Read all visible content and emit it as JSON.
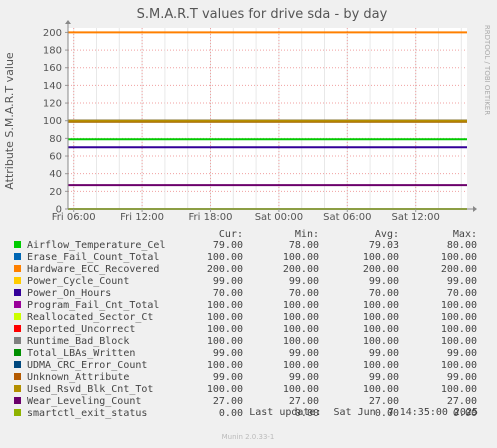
{
  "chart_data": {
    "type": "line",
    "title": "S.M.A.R.T values for drive sda - by day",
    "ylabel": "Attribute S.M.A.R.T value",
    "ylim": [
      0,
      205
    ],
    "y_ticks": [
      0,
      20,
      40,
      60,
      80,
      100,
      120,
      140,
      160,
      180,
      200
    ],
    "x_tick_labels": [
      "Fri 06:00",
      "Fri 12:00",
      "Fri 18:00",
      "Sat 00:00",
      "Sat 06:00",
      "Sat 12:00"
    ],
    "x_tick_hours": [
      6,
      12,
      18,
      24,
      30,
      36
    ],
    "x_range_hours": [
      5.5,
      40.5
    ],
    "grid": true,
    "legend_placement": "bottom",
    "columns": [
      "Cur:",
      "Min:",
      "Avg:",
      "Max:"
    ],
    "series": [
      {
        "name": "Airflow_Temperature_Cel",
        "color": "#00cc00",
        "cur": "79.00",
        "min": "78.00",
        "avg": "79.03",
        "max": "80.00",
        "value": 79
      },
      {
        "name": "Erase_Fail_Count_Total",
        "color": "#0066b3",
        "cur": "100.00",
        "min": "100.00",
        "avg": "100.00",
        "max": "100.00",
        "value": 100
      },
      {
        "name": "Hardware_ECC_Recovered",
        "color": "#ff8000",
        "cur": "200.00",
        "min": "200.00",
        "avg": "200.00",
        "max": "200.00",
        "value": 200
      },
      {
        "name": "Power_Cycle_Count",
        "color": "#ffcc00",
        "cur": "99.00",
        "min": "99.00",
        "avg": "99.00",
        "max": "99.00",
        "value": 99
      },
      {
        "name": "Power_On_Hours",
        "color": "#330099",
        "cur": "70.00",
        "min": "70.00",
        "avg": "70.00",
        "max": "70.00",
        "value": 70
      },
      {
        "name": "Program_Fail_Cnt_Total",
        "color": "#990099",
        "cur": "100.00",
        "min": "100.00",
        "avg": "100.00",
        "max": "100.00",
        "value": 100
      },
      {
        "name": "Reallocated_Sector_Ct",
        "color": "#ccff00",
        "cur": "100.00",
        "min": "100.00",
        "avg": "100.00",
        "max": "100.00",
        "value": 100
      },
      {
        "name": "Reported_Uncorrect",
        "color": "#ff0000",
        "cur": "100.00",
        "min": "100.00",
        "avg": "100.00",
        "max": "100.00",
        "value": 100
      },
      {
        "name": "Runtime_Bad_Block",
        "color": "#808080",
        "cur": "100.00",
        "min": "100.00",
        "avg": "100.00",
        "max": "100.00",
        "value": 100
      },
      {
        "name": "Total_LBAs_Written",
        "color": "#008f00",
        "cur": "99.00",
        "min": "99.00",
        "avg": "99.00",
        "max": "99.00",
        "value": 99
      },
      {
        "name": "UDMA_CRC_Error_Count",
        "color": "#00487d",
        "cur": "100.00",
        "min": "100.00",
        "avg": "100.00",
        "max": "100.00",
        "value": 100
      },
      {
        "name": "Unknown_Attribute",
        "color": "#b35a00",
        "cur": "99.00",
        "min": "99.00",
        "avg": "99.00",
        "max": "99.00",
        "value": 99
      },
      {
        "name": "Used_Rsvd_Blk_Cnt_Tot",
        "color": "#b38f00",
        "cur": "100.00",
        "min": "100.00",
        "avg": "100.00",
        "max": "100.00",
        "value": 100
      },
      {
        "name": "Wear_Leveling_Count",
        "color": "#6b006b",
        "cur": "27.00",
        "min": "27.00",
        "avg": "27.00",
        "max": "27.00",
        "value": 27
      },
      {
        "name": "smartctl_exit_status",
        "color": "#8fb300",
        "cur": "0.00",
        "min": "0.00",
        "avg": "0.00",
        "max": "0.00",
        "value": 0
      }
    ]
  },
  "side_text": "RRDTOOL / TOBI OETIKER",
  "last_update": "Last update:  Sat Jun  7 14:35:00 2025",
  "footer": "Munin 2.0.33-1"
}
